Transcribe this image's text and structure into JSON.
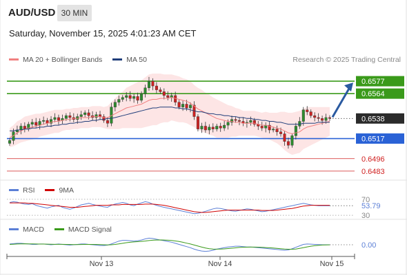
{
  "header": {
    "symbol": "AUD/USD",
    "timeframe": "30 MIN",
    "datetime": "Saturday, November 15, 2025 4:01:23 AM CET"
  },
  "legend": {
    "ma20": {
      "label": "MA 20 + Bollinger Bands",
      "color": "#f08080"
    },
    "ma50": {
      "label": "MA 50",
      "color": "#1f3d7a"
    },
    "rsi": {
      "label": "RSI",
      "color": "#5b7fd6"
    },
    "rsi9": {
      "label": "9MA",
      "color": "#d00000"
    },
    "macd": {
      "label": "MACD",
      "color": "#5b7fd6"
    },
    "macd_signal": {
      "label": "MACD Signal",
      "color": "#3a9a1a"
    }
  },
  "credit": "Research © 2025 Trading Central",
  "colors": {
    "resistance": "#3a9a1a",
    "support": "#2a62d6",
    "target": "#d02020",
    "pivot_arrow": "#2a5aa0",
    "bull": "#2e8b2e",
    "bear": "#cc2222",
    "band_fill": "#fde2e2"
  },
  "chart_data": [
    {
      "type": "line",
      "panel": "price",
      "x_ticks": [
        "Nov 13",
        "Nov 14",
        "Nov 15"
      ],
      "levels": [
        {
          "value": 0.6577,
          "label": "0.6577",
          "kind": "resistance"
        },
        {
          "value": 0.6564,
          "label": "0.6564",
          "kind": "resistance"
        },
        {
          "value": 0.6538,
          "label": "0.6538",
          "kind": "pivot"
        },
        {
          "value": 0.6517,
          "label": "0.6517",
          "kind": "support"
        },
        {
          "value": 0.6496,
          "label": "0.6496",
          "kind": "target"
        },
        {
          "value": 0.6483,
          "label": "0.6483",
          "kind": "target"
        }
      ],
      "ylim": [
        0.6475,
        0.659
      ],
      "close": [
        0.6515,
        0.6524,
        0.6526,
        0.653,
        0.6527,
        0.6532,
        0.6534,
        0.6531,
        0.6535,
        0.6536,
        0.6533,
        0.6537,
        0.6539,
        0.6536,
        0.6538,
        0.6541,
        0.6539,
        0.6537,
        0.654,
        0.6542,
        0.6544,
        0.6541,
        0.6539,
        0.6542,
        0.654,
        0.6536,
        0.6533,
        0.655,
        0.6555,
        0.6558,
        0.656,
        0.6562,
        0.6559,
        0.6561,
        0.6557,
        0.6564,
        0.657,
        0.6577,
        0.6572,
        0.6568,
        0.6566,
        0.6562,
        0.656,
        0.6562,
        0.6555,
        0.655,
        0.6553,
        0.6549,
        0.6552,
        0.654,
        0.6527,
        0.653,
        0.6526,
        0.6529,
        0.6527,
        0.653,
        0.6528,
        0.6531,
        0.6534,
        0.6537,
        0.6536,
        0.6535,
        0.6533,
        0.6534,
        0.6536,
        0.6532,
        0.653,
        0.6528,
        0.6531,
        0.6526,
        0.6527,
        0.6524,
        0.6522,
        0.6514,
        0.651,
        0.652,
        0.653,
        0.6535,
        0.6547,
        0.6545,
        0.6541,
        0.6539,
        0.6538,
        0.6536,
        0.6539,
        0.6538
      ],
      "ma20": [
        0.6518,
        0.652,
        0.6523,
        0.6525,
        0.6527,
        0.6528,
        0.6529,
        0.653,
        0.6531,
        0.6532,
        0.6533,
        0.6534,
        0.6535,
        0.6535,
        0.6536,
        0.6537,
        0.6537,
        0.6538,
        0.6538,
        0.6539,
        0.6539,
        0.6539,
        0.654,
        0.654,
        0.654,
        0.6539,
        0.6539,
        0.6541,
        0.6543,
        0.6545,
        0.6547,
        0.6549,
        0.655,
        0.6551,
        0.6552,
        0.6553,
        0.6555,
        0.6557,
        0.6558,
        0.6558,
        0.6559,
        0.6559,
        0.6559,
        0.656,
        0.6559,
        0.6558,
        0.6557,
        0.6556,
        0.6554,
        0.6551,
        0.6548,
        0.6546,
        0.6544,
        0.6542,
        0.654,
        0.6538,
        0.6537,
        0.6536,
        0.6535,
        0.6535,
        0.6534,
        0.6534,
        0.6533,
        0.6533,
        0.6533,
        0.6533,
        0.6532,
        0.6531,
        0.6531,
        0.653,
        0.6529,
        0.6528,
        0.6527,
        0.6525,
        0.6523,
        0.6522,
        0.6523,
        0.6524,
        0.6527,
        0.6529,
        0.653,
        0.6531,
        0.6532,
        0.6533,
        0.6534,
        0.6535
      ],
      "ma50": [
        0.6525,
        0.6525,
        0.6526,
        0.6526,
        0.6527,
        0.6527,
        0.6528,
        0.6528,
        0.6529,
        0.6529,
        0.653,
        0.653,
        0.6531,
        0.6531,
        0.6532,
        0.6532,
        0.6533,
        0.6533,
        0.6534,
        0.6534,
        0.6535,
        0.6535,
        0.6536,
        0.6536,
        0.6537,
        0.6537,
        0.6538,
        0.6538,
        0.6539,
        0.654,
        0.6541,
        0.6542,
        0.6543,
        0.6544,
        0.6545,
        0.6546,
        0.6547,
        0.6548,
        0.6549,
        0.6549,
        0.655,
        0.655,
        0.655,
        0.655,
        0.6549,
        0.6549,
        0.6548,
        0.6548,
        0.6547,
        0.6546,
        0.6545,
        0.6545,
        0.6544,
        0.6543,
        0.6543,
        0.6542,
        0.6542,
        0.6541,
        0.6541,
        0.654,
        0.654,
        0.6539,
        0.6539,
        0.6538,
        0.6538,
        0.6537,
        0.6537,
        0.6536,
        0.6536,
        0.6535,
        0.6535,
        0.6534,
        0.6534,
        0.6533,
        0.6532,
        0.6532,
        0.6532,
        0.6532,
        0.6533,
        0.6533,
        0.6533,
        0.6533,
        0.6534,
        0.6534,
        0.6534,
        0.6534
      ],
      "bb_width": [
        0.001,
        0.0011,
        0.0012,
        0.0012,
        0.0013,
        0.0013,
        0.0013,
        0.0013,
        0.0012,
        0.0012,
        0.0012,
        0.0012,
        0.0012,
        0.0012,
        0.0011,
        0.0011,
        0.0011,
        0.0011,
        0.0011,
        0.0011,
        0.0011,
        0.0011,
        0.0011,
        0.0011,
        0.0011,
        0.0011,
        0.0012,
        0.0014,
        0.0016,
        0.0018,
        0.0019,
        0.0021,
        0.0022,
        0.0023,
        0.0024,
        0.0025,
        0.0026,
        0.0027,
        0.0027,
        0.0027,
        0.0026,
        0.0025,
        0.0025,
        0.0024,
        0.0024,
        0.0024,
        0.0023,
        0.0023,
        0.0023,
        0.0022,
        0.0022,
        0.0022,
        0.0021,
        0.0021,
        0.002,
        0.002,
        0.0019,
        0.0018,
        0.0017,
        0.0016,
        0.0015,
        0.0014,
        0.0013,
        0.0013,
        0.0013,
        0.0013,
        0.0013,
        0.0013,
        0.0014,
        0.0014,
        0.0015,
        0.0016,
        0.0018,
        0.002,
        0.0021,
        0.0022,
        0.0022,
        0.0022,
        0.0021,
        0.0021,
        0.002,
        0.0019,
        0.0018,
        0.0017,
        0.0016,
        0.0015
      ]
    },
    {
      "type": "line",
      "panel": "rsi",
      "series_names": [
        "RSI",
        "9MA"
      ],
      "levels": [
        {
          "value": 70,
          "label": "70"
        },
        {
          "value": 30,
          "label": "30"
        }
      ],
      "last_value_label": "53.79",
      "ylim": [
        25,
        75
      ],
      "rsi": [
        62,
        64,
        63,
        60,
        58,
        57,
        59,
        55,
        52,
        50,
        48,
        51,
        53,
        55,
        50,
        47,
        45,
        48,
        52,
        56,
        58,
        60,
        57,
        55,
        53,
        51,
        50,
        55,
        58,
        60,
        62,
        60,
        56,
        54,
        58,
        61,
        64,
        62,
        58,
        55,
        52,
        50,
        48,
        46,
        44,
        42,
        40,
        38,
        36,
        34,
        35,
        37,
        40,
        43,
        46,
        48,
        47,
        45,
        43,
        41,
        40,
        42,
        44,
        46,
        45,
        43,
        41,
        39,
        40,
        42,
        44,
        46,
        48,
        50,
        52,
        54,
        56,
        58,
        60,
        58,
        56,
        55,
        54,
        54,
        54,
        54
      ],
      "rsi_ma": [
        61,
        61,
        61,
        61,
        61,
        60,
        60,
        59,
        58,
        57,
        56,
        55,
        54,
        53,
        52,
        51,
        50,
        50,
        50,
        51,
        52,
        53,
        54,
        55,
        55,
        55,
        55,
        56,
        56,
        56,
        57,
        57,
        57,
        57,
        57,
        57,
        58,
        58,
        58,
        57,
        56,
        55,
        53,
        51,
        49,
        47,
        45,
        43,
        41,
        39,
        38,
        37,
        37,
        38,
        39,
        40,
        41,
        42,
        43,
        43,
        43,
        43,
        43,
        43,
        43,
        43,
        43,
        42,
        42,
        42,
        42,
        43,
        44,
        45,
        46,
        47,
        49,
        51,
        53,
        54,
        55,
        55,
        55,
        55,
        55,
        55
      ]
    },
    {
      "type": "line",
      "panel": "macd",
      "series_names": [
        "MACD",
        "MACD Signal"
      ],
      "last_value_label": "0.00",
      "ylim": [
        -1.5,
        1.5
      ],
      "macd": [
        0.1,
        0.15,
        0.2,
        0.2,
        0.15,
        0.1,
        0.05,
        0.05,
        0.1,
        0.1,
        0.05,
        0,
        0.05,
        0.1,
        0.05,
        0,
        -0.05,
        0,
        0.05,
        0.1,
        0.1,
        0.05,
        0,
        -0.05,
        -0.1,
        -0.1,
        -0.05,
        0.1,
        0.3,
        0.5,
        0.6,
        0.6,
        0.55,
        0.5,
        0.55,
        0.65,
        0.8,
        0.9,
        0.85,
        0.75,
        0.65,
        0.55,
        0.45,
        0.35,
        0.2,
        0.05,
        -0.1,
        -0.25,
        -0.4,
        -0.6,
        -0.75,
        -0.85,
        -0.9,
        -0.85,
        -0.75,
        -0.6,
        -0.5,
        -0.4,
        -0.3,
        -0.25,
        -0.2,
        -0.2,
        -0.25,
        -0.3,
        -0.3,
        -0.35,
        -0.4,
        -0.45,
        -0.5,
        -0.55,
        -0.6,
        -0.65,
        -0.7,
        -0.75,
        -0.7,
        -0.55,
        -0.35,
        -0.15,
        0.05,
        0.1,
        0.08,
        0.05,
        0.02,
        0,
        0,
        0
      ],
      "signal": [
        0.05,
        0.07,
        0.1,
        0.12,
        0.13,
        0.12,
        0.11,
        0.1,
        0.09,
        0.09,
        0.08,
        0.07,
        0.06,
        0.06,
        0.06,
        0.05,
        0.04,
        0.03,
        0.03,
        0.04,
        0.05,
        0.05,
        0.05,
        0.04,
        0.02,
        0,
        -0.02,
        0,
        0.05,
        0.12,
        0.2,
        0.28,
        0.34,
        0.38,
        0.42,
        0.46,
        0.51,
        0.57,
        0.62,
        0.65,
        0.66,
        0.65,
        0.62,
        0.58,
        0.52,
        0.44,
        0.34,
        0.22,
        0.1,
        -0.04,
        -0.18,
        -0.32,
        -0.44,
        -0.53,
        -0.58,
        -0.6,
        -0.59,
        -0.56,
        -0.52,
        -0.47,
        -0.42,
        -0.37,
        -0.34,
        -0.33,
        -0.32,
        -0.32,
        -0.33,
        -0.35,
        -0.38,
        -0.41,
        -0.45,
        -0.49,
        -0.53,
        -0.58,
        -0.61,
        -0.61,
        -0.58,
        -0.5,
        -0.4,
        -0.29,
        -0.2,
        -0.13,
        -0.08,
        -0.04,
        -0.02,
        -0.01
      ]
    }
  ]
}
